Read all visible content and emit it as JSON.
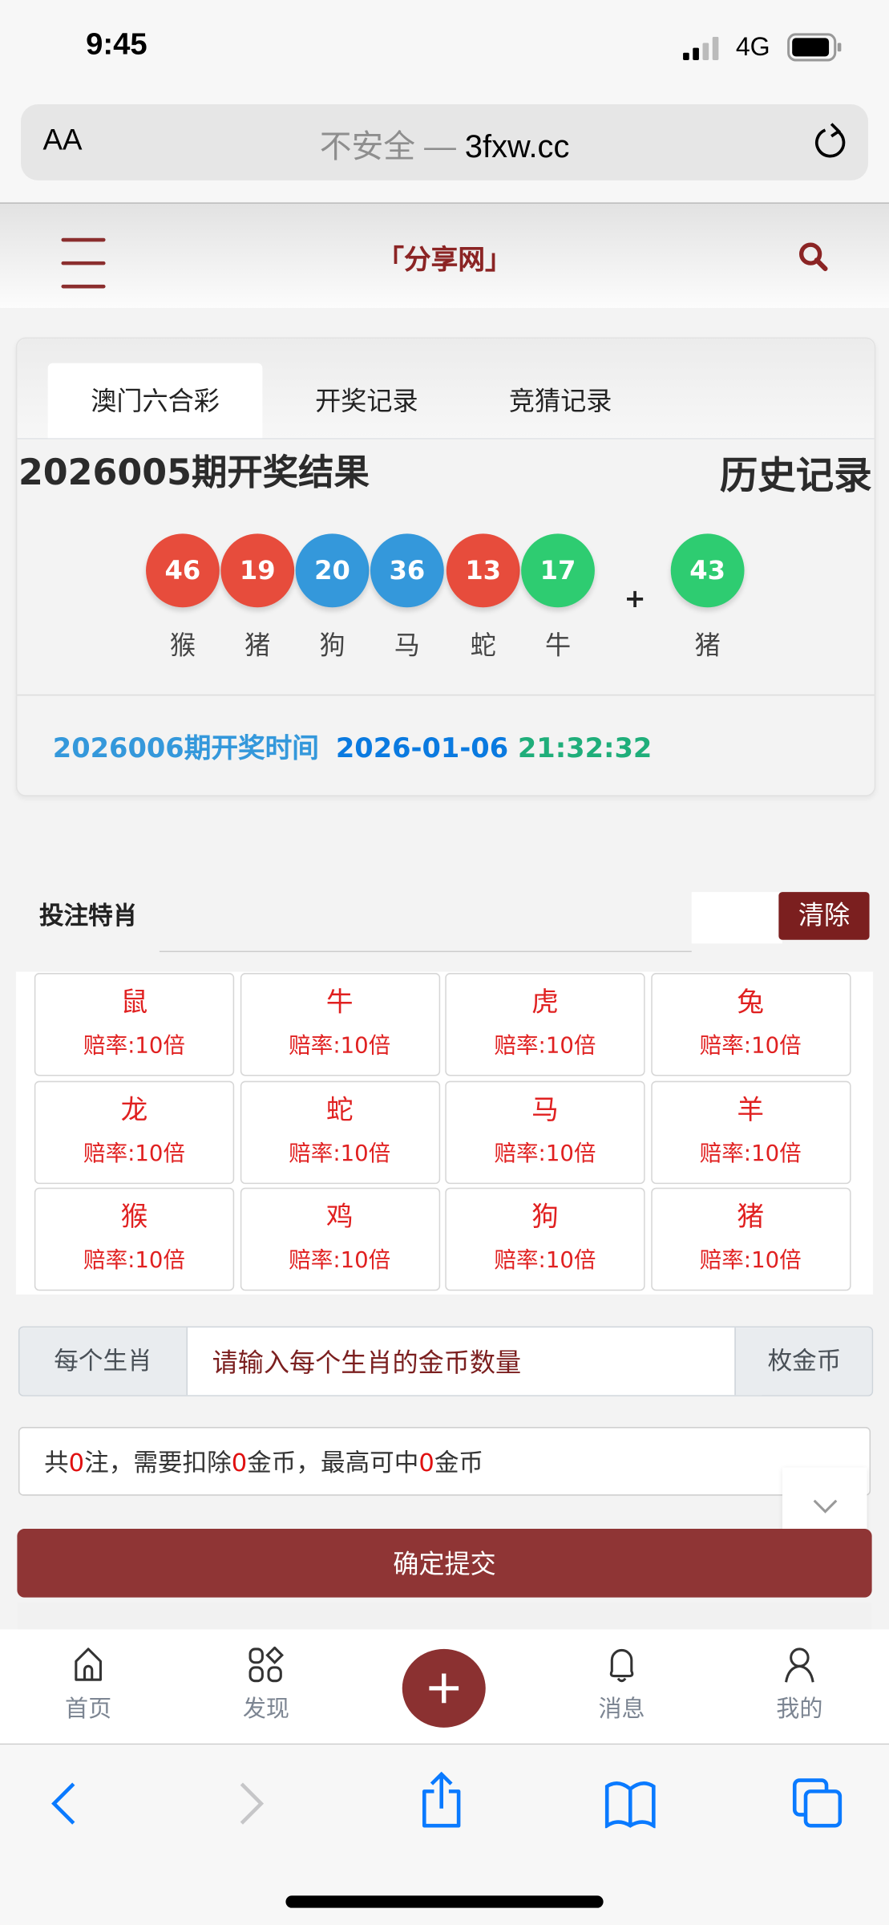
{
  "status_bar": {
    "time": "9:45",
    "network": "4G",
    "battery_level": 0.85,
    "signal_bars": 2
  },
  "browser": {
    "text_size_label": "AA",
    "security_label": "不安全",
    "separator": " — ",
    "domain": "3fxw.cc"
  },
  "header": {
    "title": "「分享网」"
  },
  "tabs": [
    {
      "label": "澳门六合彩",
      "active": true
    },
    {
      "label": "开奖记录"
    },
    {
      "label": "竞猜记录"
    }
  ],
  "result": {
    "title": "2026005期开奖结果",
    "history_link": "历史记录",
    "balls": [
      {
        "number": "46",
        "zodiac": "猴",
        "color": "#e74c3c"
      },
      {
        "number": "19",
        "zodiac": "猪",
        "color": "#e74c3c"
      },
      {
        "number": "20",
        "zodiac": "狗",
        "color": "#3498db"
      },
      {
        "number": "36",
        "zodiac": "马",
        "color": "#3498db"
      },
      {
        "number": "13",
        "zodiac": "蛇",
        "color": "#e74c3c"
      },
      {
        "number": "17",
        "zodiac": "牛",
        "color": "#2ecc71"
      }
    ],
    "plus": "+",
    "special": {
      "number": "43",
      "zodiac": "猪",
      "color": "#2ecc71"
    }
  },
  "next_draw": {
    "label": "2026006期开奖时间",
    "date": "2026-01-06",
    "time": "21:32:32"
  },
  "bet": {
    "label": "投注特肖",
    "clear_button": "清除",
    "zodiacs": [
      {
        "name": "鼠",
        "odds": "赔率:10倍"
      },
      {
        "name": "牛",
        "odds": "赔率:10倍"
      },
      {
        "name": "虎",
        "odds": "赔率:10倍"
      },
      {
        "name": "兔",
        "odds": "赔率:10倍"
      },
      {
        "name": "龙",
        "odds": "赔率:10倍"
      },
      {
        "name": "蛇",
        "odds": "赔率:10倍"
      },
      {
        "name": "马",
        "odds": "赔率:10倍"
      },
      {
        "name": "羊",
        "odds": "赔率:10倍"
      },
      {
        "name": "猴",
        "odds": "赔率:10倍"
      },
      {
        "name": "鸡",
        "odds": "赔率:10倍"
      },
      {
        "name": "狗",
        "odds": "赔率:10倍"
      },
      {
        "name": "猪",
        "odds": "赔率:10倍"
      }
    ],
    "amount_prefix": "每个生肖",
    "amount_placeholder": "请输入每个生肖的金币数量",
    "amount_suffix": "枚金币",
    "summary": {
      "t1": "共",
      "count": "0",
      "t2": "注，需要扣除",
      "cost": "0",
      "t3": "金币，最高可中",
      "max": "0",
      "t4": "金币"
    },
    "submit_button": "确定提交"
  },
  "tabbar": [
    {
      "label": "首页",
      "icon": "home-icon"
    },
    {
      "label": "发现",
      "icon": "discover-icon"
    },
    {
      "label": "",
      "icon": "plus-icon"
    },
    {
      "label": "消息",
      "icon": "bell-icon"
    },
    {
      "label": "我的",
      "icon": "user-icon"
    }
  ],
  "colors": {
    "brand": "#8b2e2e",
    "ball_red": "#e74c3c",
    "ball_blue": "#3498db",
    "ball_green": "#2ecc71",
    "odds_red": "#e02020",
    "safari_blue": "#0a7aff"
  }
}
